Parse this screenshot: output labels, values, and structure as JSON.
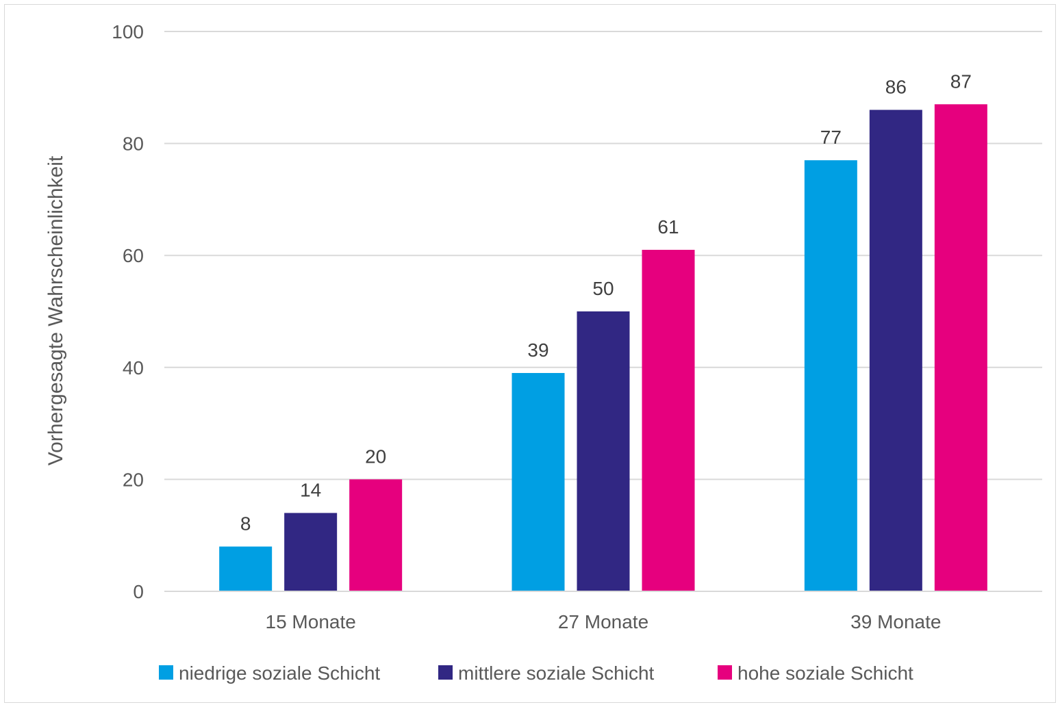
{
  "chart_data": {
    "type": "bar",
    "title": "",
    "xlabel": "",
    "ylabel": "Vorhergesagte Wahrscheinlichkeit",
    "ylim": [
      0,
      100
    ],
    "yticks": [
      0,
      20,
      40,
      60,
      80,
      100
    ],
    "grid": true,
    "legend_position": "bottom",
    "categories": [
      "15 Monate",
      "27 Monate",
      "39 Monate"
    ],
    "series": [
      {
        "name": "niedrige soziale Schicht",
        "color": "#009FE3",
        "values": [
          8,
          39,
          77
        ]
      },
      {
        "name": "mittlere soziale Schicht",
        "color": "#312783",
        "values": [
          14,
          50,
          86
        ]
      },
      {
        "name": "hohe soziale Schicht",
        "color": "#E6007E",
        "values": [
          20,
          61,
          87
        ]
      }
    ]
  }
}
